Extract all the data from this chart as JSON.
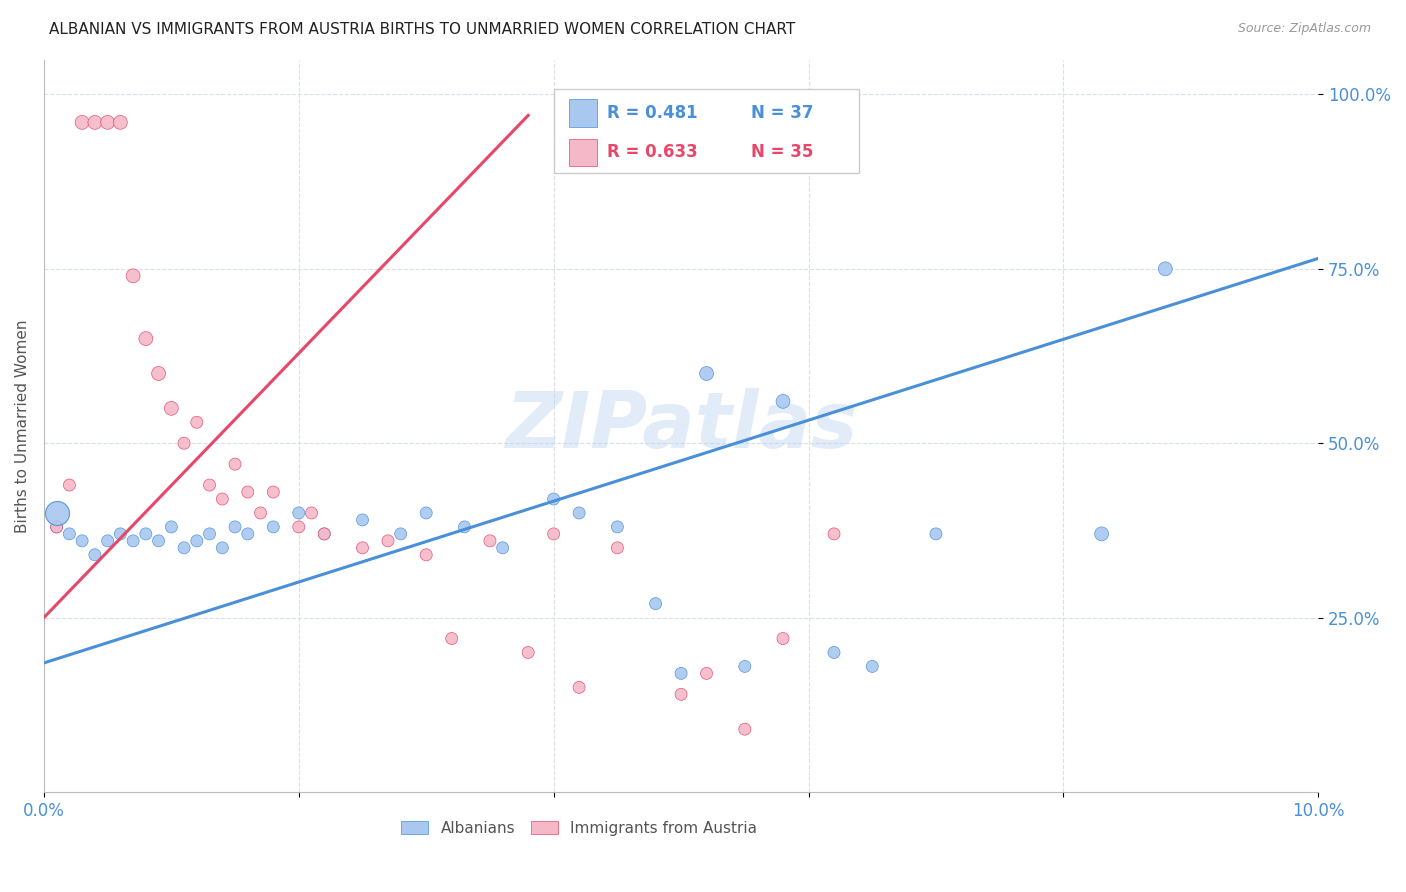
{
  "title": "ALBANIAN VS IMMIGRANTS FROM AUSTRIA BIRTHS TO UNMARRIED WOMEN CORRELATION CHART",
  "source": "Source: ZipAtlas.com",
  "ylabel": "Births to Unmarried Women",
  "xlim": [
    0.0,
    0.1
  ],
  "ylim": [
    0.0,
    1.05
  ],
  "ytick_vals": [
    0.25,
    0.5,
    0.75,
    1.0
  ],
  "ytick_labels": [
    "25.0%",
    "50.0%",
    "75.0%",
    "100.0%"
  ],
  "xtick_vals": [
    0.0,
    0.02,
    0.04,
    0.06,
    0.08,
    0.1
  ],
  "xtick_labels": [
    "0.0%",
    "",
    "",
    "",
    "",
    "10.0%"
  ],
  "blue_color": "#A8C8F0",
  "pink_color": "#F5B8C8",
  "blue_line_color": "#4A90D9",
  "pink_line_color": "#E8476A",
  "grid_color": "#D8DFE8",
  "watermark": "ZIPatlas",
  "blue_R": "0.481",
  "blue_N": "37",
  "pink_R": "0.633",
  "pink_N": "35",
  "blue_scatter_x": [
    0.001,
    0.002,
    0.003,
    0.004,
    0.005,
    0.006,
    0.007,
    0.008,
    0.009,
    0.01,
    0.011,
    0.012,
    0.013,
    0.014,
    0.015,
    0.016,
    0.018,
    0.02,
    0.022,
    0.025,
    0.028,
    0.03,
    0.033,
    0.036,
    0.04,
    0.042,
    0.045,
    0.048,
    0.05,
    0.052,
    0.055,
    0.058,
    0.062,
    0.065,
    0.07,
    0.083,
    0.088
  ],
  "blue_scatter_y": [
    0.38,
    0.37,
    0.36,
    0.34,
    0.36,
    0.37,
    0.36,
    0.37,
    0.36,
    0.38,
    0.35,
    0.36,
    0.37,
    0.35,
    0.38,
    0.37,
    0.38,
    0.4,
    0.37,
    0.39,
    0.37,
    0.4,
    0.38,
    0.35,
    0.42,
    0.4,
    0.38,
    0.27,
    0.17,
    0.6,
    0.18,
    0.56,
    0.2,
    0.18,
    0.37,
    0.37,
    0.75
  ],
  "blue_scatter_sizes": [
    15,
    15,
    15,
    15,
    15,
    15,
    15,
    15,
    15,
    15,
    15,
    15,
    15,
    15,
    15,
    15,
    15,
    15,
    15,
    15,
    15,
    15,
    15,
    15,
    15,
    15,
    15,
    15,
    15,
    20,
    15,
    20,
    15,
    15,
    15,
    20,
    20
  ],
  "blue_large_x": [
    0.001
  ],
  "blue_large_y": [
    0.4
  ],
  "blue_large_size": [
    300
  ],
  "pink_scatter_x": [
    0.001,
    0.002,
    0.003,
    0.004,
    0.005,
    0.006,
    0.007,
    0.008,
    0.009,
    0.01,
    0.011,
    0.012,
    0.013,
    0.014,
    0.015,
    0.016,
    0.017,
    0.018,
    0.02,
    0.021,
    0.022,
    0.025,
    0.027,
    0.03,
    0.032,
    0.035,
    0.038,
    0.04,
    0.042,
    0.045,
    0.05,
    0.052,
    0.055,
    0.058,
    0.062
  ],
  "pink_scatter_y": [
    0.38,
    0.44,
    0.96,
    0.96,
    0.96,
    0.96,
    0.74,
    0.65,
    0.6,
    0.55,
    0.5,
    0.53,
    0.44,
    0.42,
    0.47,
    0.43,
    0.4,
    0.43,
    0.38,
    0.4,
    0.37,
    0.35,
    0.36,
    0.34,
    0.22,
    0.36,
    0.2,
    0.37,
    0.15,
    0.35,
    0.14,
    0.17,
    0.09,
    0.22,
    0.37
  ],
  "pink_scatter_sizes": [
    15,
    15,
    20,
    20,
    20,
    20,
    20,
    20,
    20,
    20,
    15,
    15,
    15,
    15,
    15,
    15,
    15,
    15,
    15,
    15,
    15,
    15,
    15,
    15,
    15,
    15,
    15,
    15,
    15,
    15,
    15,
    15,
    15,
    15,
    15
  ],
  "blue_line_x": [
    0.0,
    0.1
  ],
  "blue_line_y": [
    0.185,
    0.765
  ],
  "pink_line_x": [
    0.0,
    0.038
  ],
  "pink_line_y": [
    0.25,
    0.97
  ]
}
